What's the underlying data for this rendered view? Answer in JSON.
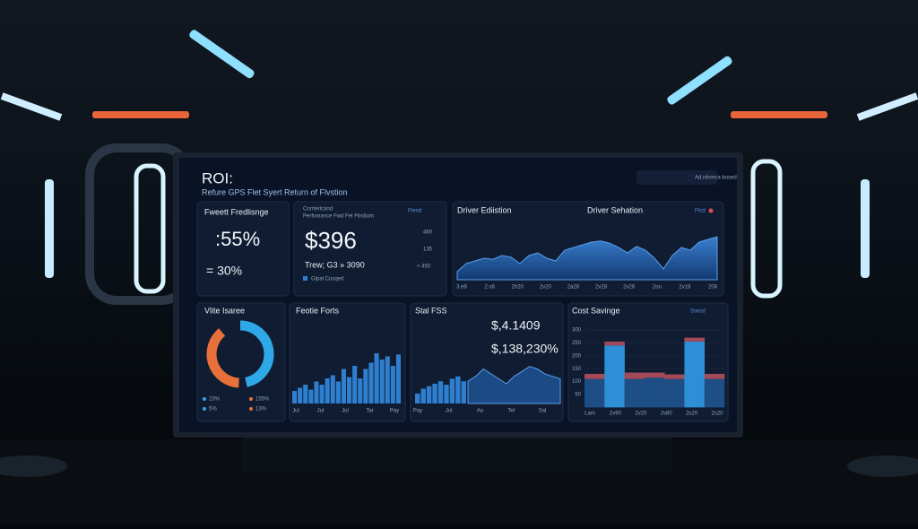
{
  "header": {
    "title": "ROI:",
    "subtitle": "Refure GPS Flet Syert Return of Flvstion",
    "badge": "Ad.rdsmca bused"
  },
  "panels": {
    "fleet": {
      "title": "Fweett Fredlisnge",
      "value": ":55%",
      "sub": "= 30%"
    },
    "performance": {
      "title": "Corrterlcand",
      "subtitle": "Perfomance Fwd Fet Fbstlum",
      "tag": "Ftend",
      "value": "$396",
      "sub": "Trew; G3 » 3090",
      "legend": "Gipal Cusqed",
      "side": [
        "460",
        "135",
        "< 450"
      ]
    },
    "driver": {
      "title": "Driver Ediistion",
      "subtitle": "Driver Sehation",
      "tag": "Ftcd",
      "x_labels": [
        "3.e8",
        "2.s8",
        "2h20",
        "2v20",
        "2a28",
        "2v28",
        "2v28",
        "2ou",
        "2v18",
        "208"
      ],
      "values": [
        15,
        30,
        35,
        40,
        38,
        45,
        42,
        30,
        45,
        50,
        40,
        35,
        55,
        60,
        65,
        70,
        72,
        68,
        60,
        50,
        62,
        55,
        40,
        20,
        45,
        60,
        55,
        70,
        75,
        80
      ]
    },
    "share": {
      "title": "Vlite Isaree",
      "segments": [
        {
          "value": 55,
          "color": "#2fa8e8"
        },
        {
          "value": 45,
          "color": "#e8703a"
        }
      ],
      "legend": [
        "23%",
        "155%",
        "5%",
        "13%"
      ]
    },
    "forts": {
      "title": "Feotie Forts",
      "color": "#2f7fd0",
      "values": [
        20,
        25,
        30,
        22,
        35,
        30,
        40,
        45,
        35,
        55,
        42,
        60,
        40,
        55,
        65,
        80,
        70,
        75,
        60,
        78
      ],
      "x_labels": [
        "Jul",
        "Jul",
        "Jul",
        "Tar",
        "Pay"
      ]
    },
    "sfs": {
      "title": "Stal FSS",
      "value": "$,4.1409",
      "sub": "$,138,230%",
      "x_labels": [
        "Pay",
        "Jul",
        "Au",
        "Tel",
        "Sal"
      ],
      "bars": [
        20,
        30,
        35,
        40,
        45,
        38,
        50,
        55,
        45
      ],
      "area": [
        45,
        55,
        70,
        60,
        50,
        40,
        55,
        65,
        75,
        70,
        60,
        55,
        50
      ]
    },
    "cost": {
      "title": "Cost Savinge",
      "tag": "Ssecd",
      "yticks": [
        300,
        250,
        200,
        150,
        100,
        50
      ],
      "x_labels": [
        "Lam",
        "2v90",
        "2v20",
        "2v80",
        "2s20",
        "2s20"
      ],
      "series": [
        {
          "color": "#1d4f86",
          "values": [
            110,
            0,
            110,
            115,
            110,
            0,
            110
          ]
        },
        {
          "color": "#2f8fd6",
          "values": [
            0,
            240,
            0,
            0,
            0,
            255,
            0
          ]
        },
        {
          "color": "#a24a5a",
          "values": [
            20,
            15,
            25,
            20,
            18,
            15,
            20
          ]
        }
      ]
    }
  }
}
